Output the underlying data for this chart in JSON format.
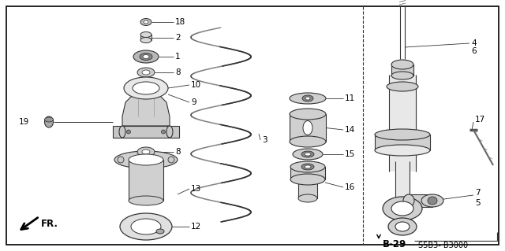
{
  "bg_color": "#ffffff",
  "border_color": "#000000",
  "line_color": "#333333",
  "text_color": "#000000",
  "diagram_code": "B-29",
  "part_number": "S5B3- B3000",
  "fr_label": "FR.",
  "label_fontsize": 7.5
}
